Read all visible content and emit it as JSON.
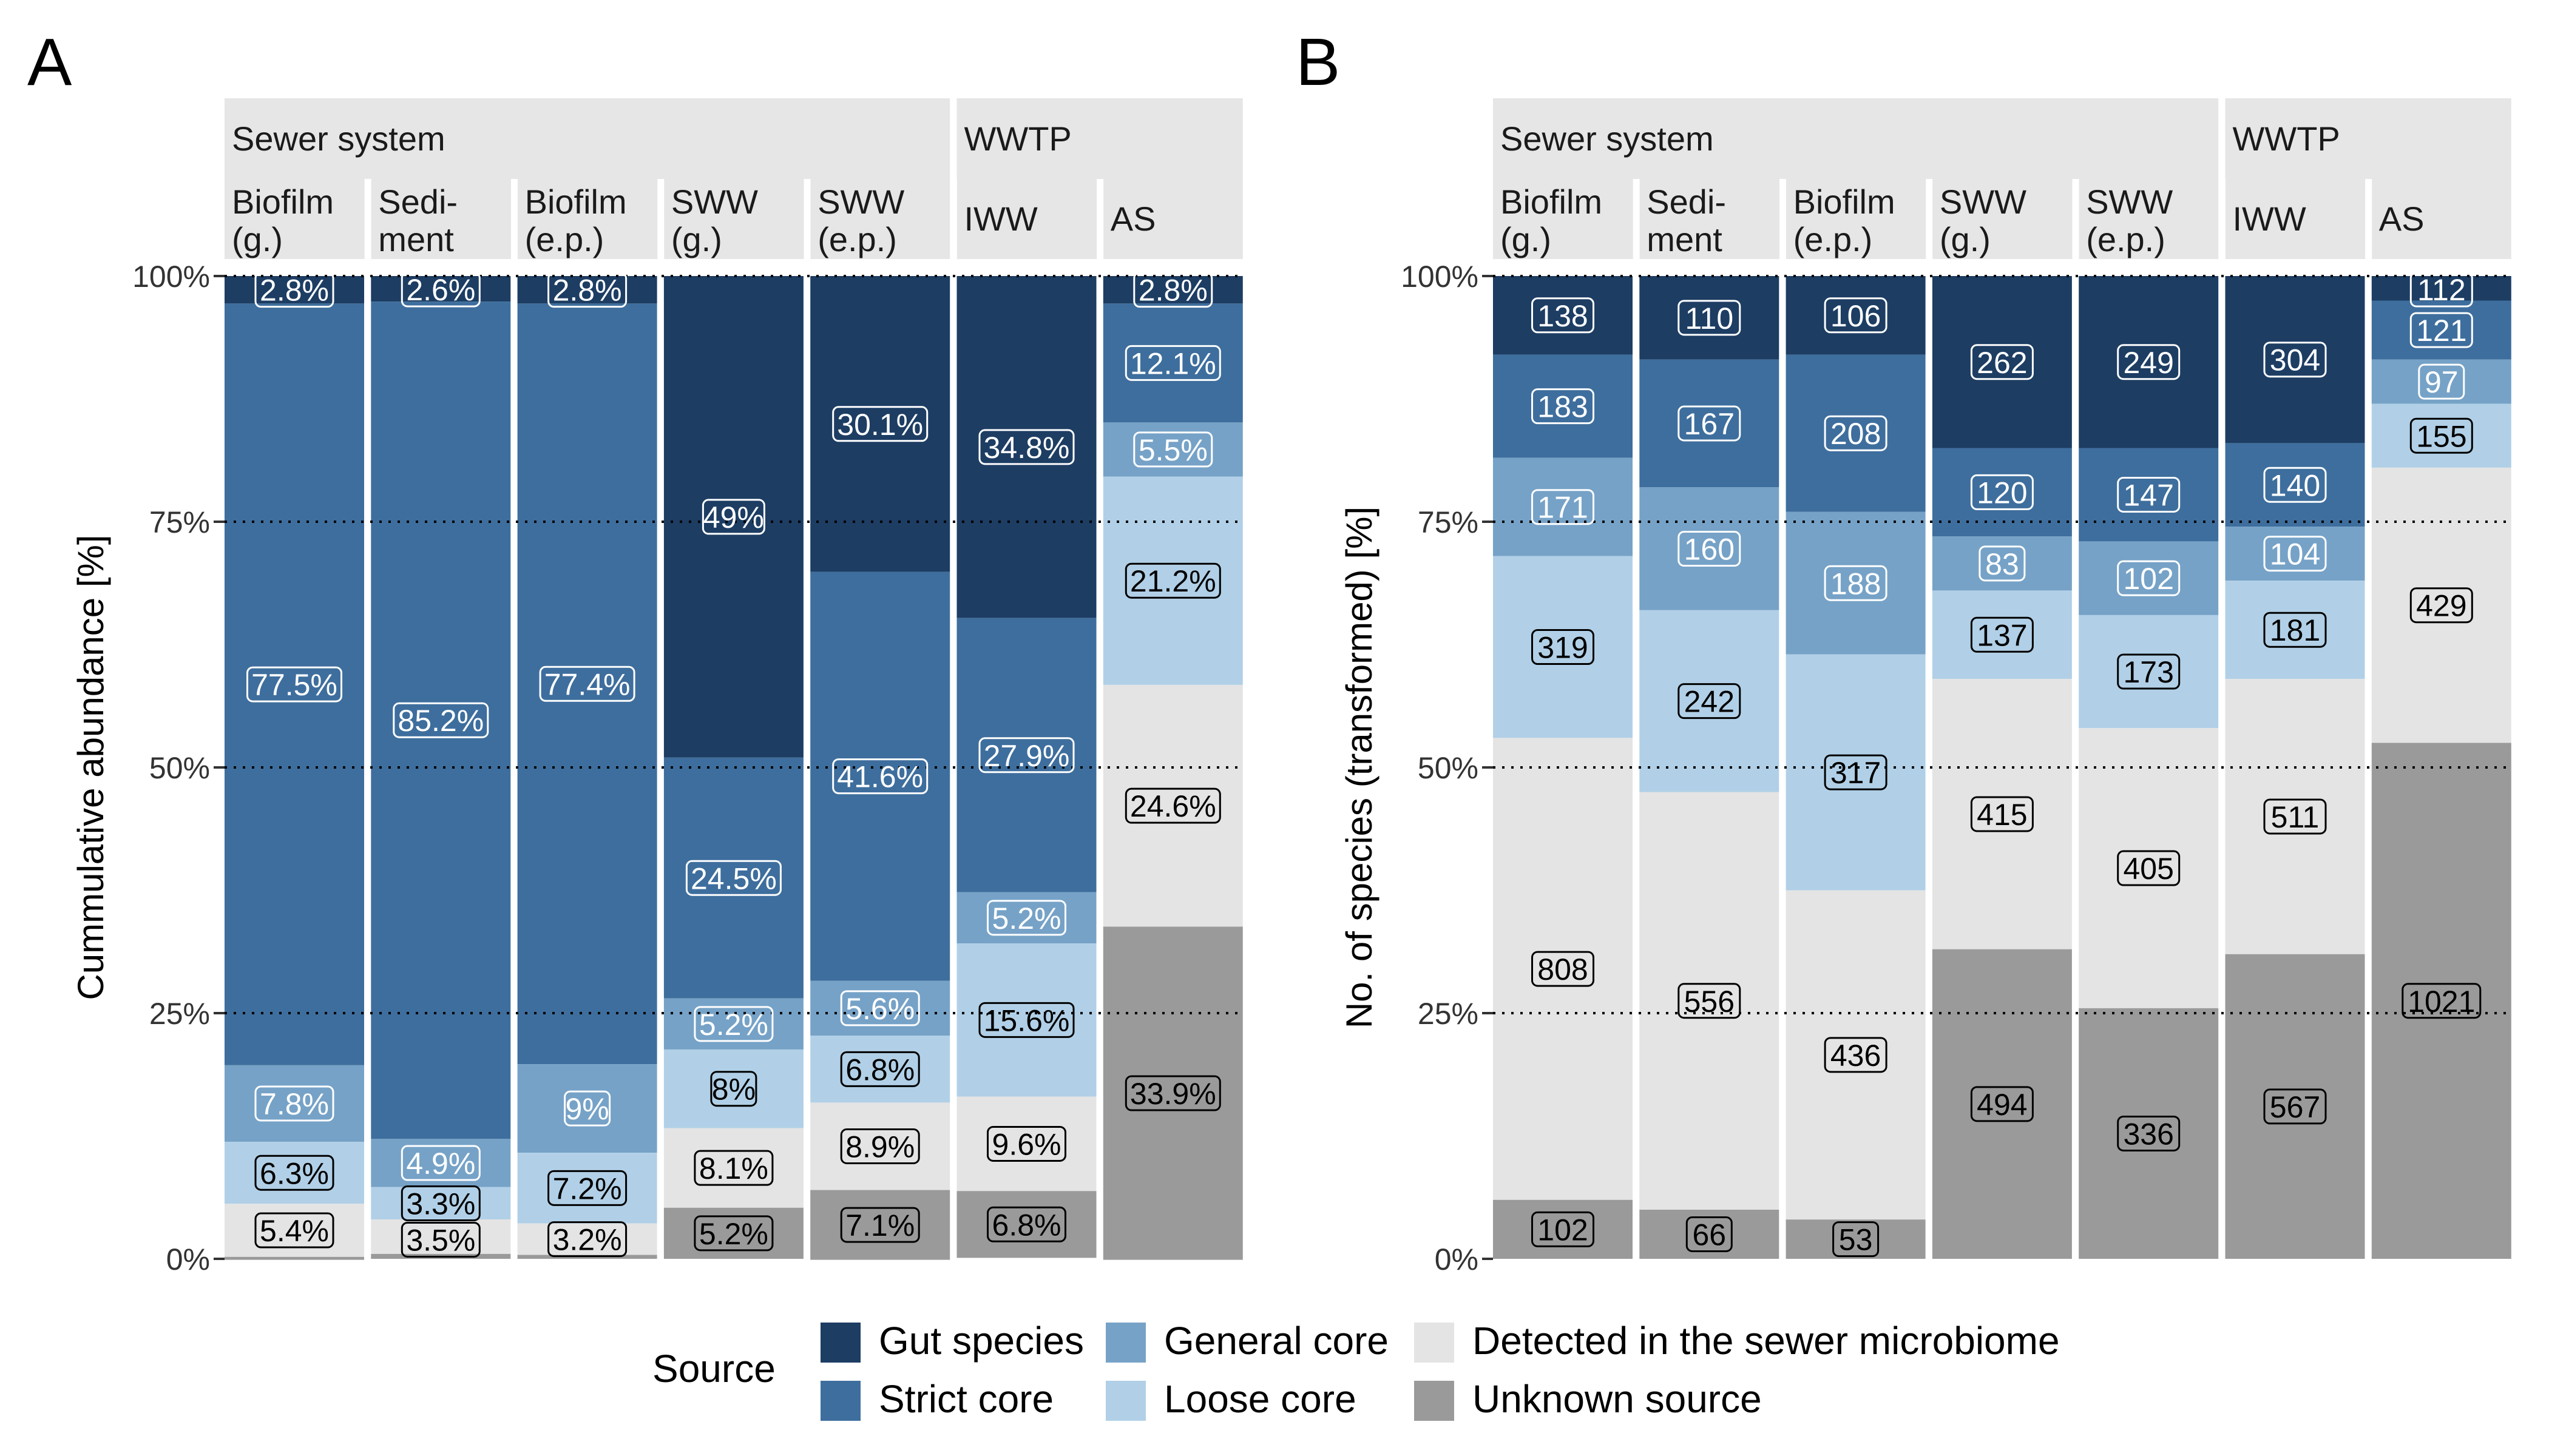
{
  "legend": {
    "title": "Source",
    "items": [
      {
        "label": "Gut species",
        "color": "#1d3d63"
      },
      {
        "label": "Strict core",
        "color": "#3e6e9d"
      },
      {
        "label": "General core",
        "color": "#76a2c7"
      },
      {
        "label": "Loose core",
        "color": "#b1d0e7"
      },
      {
        "label": "Detected in the sewer microbiome",
        "color": "#e4e4e4"
      },
      {
        "label": "Unknown source",
        "color": "#9a9a9a"
      }
    ]
  },
  "chart_data": [
    {
      "panel_letter": "A",
      "type": "bar",
      "stacked": true,
      "ylabel": "Cummulative abundance [%]",
      "ylim": [
        0,
        100
      ],
      "yticks": [
        "0%",
        "25%",
        "50%",
        "75%",
        "100%"
      ],
      "facet_groups": [
        "Sewer system",
        "WWTP"
      ],
      "categories": [
        {
          "label": "Biofilm\n(g.)",
          "group": "Sewer system"
        },
        {
          "label": "Sedi-\nment",
          "group": "Sewer system"
        },
        {
          "label": "Biofilm\n(e.p.)",
          "group": "Sewer system"
        },
        {
          "label": "SWW\n(g.)",
          "group": "Sewer system"
        },
        {
          "label": "SWW\n(e.p.)",
          "group": "Sewer system"
        },
        {
          "label": "IWW",
          "group": "WWTP"
        },
        {
          "label": "AS",
          "group": "WWTP"
        }
      ],
      "series": [
        {
          "name": "Gut species",
          "values": [
            2.8,
            2.6,
            2.8,
            49,
            30.1,
            34.8,
            2.8
          ],
          "labels": [
            "2.8%",
            "2.6%",
            "2.8%",
            "49%",
            "30.1%",
            "34.8%",
            "2.8%"
          ]
        },
        {
          "name": "Strict core",
          "values": [
            77.5,
            85.2,
            77.4,
            24.5,
            41.6,
            27.9,
            12.1
          ],
          "labels": [
            "77.5%",
            "85.2%",
            "77.4%",
            "24.5%",
            "41.6%",
            "27.9%",
            "12.1%"
          ]
        },
        {
          "name": "General core",
          "values": [
            7.8,
            4.9,
            9,
            5.2,
            5.6,
            5.2,
            5.5
          ],
          "labels": [
            "7.8%",
            "4.9%",
            "9%",
            "5.2%",
            "5.6%",
            "5.2%",
            "5.5%"
          ]
        },
        {
          "name": "Loose core",
          "values": [
            6.3,
            3.3,
            7.2,
            8,
            6.8,
            15.6,
            21.2
          ],
          "labels": [
            "6.3%",
            "3.3%",
            "7.2%",
            "8%",
            "6.8%",
            "15.6%",
            "21.2%"
          ]
        },
        {
          "name": "Detected in the sewer microbiome",
          "values": [
            5.4,
            3.5,
            3.2,
            8.1,
            8.9,
            9.6,
            24.6
          ],
          "labels": [
            "5.4%",
            "3.5%",
            "3.2%",
            "8.1%",
            "8.9%",
            "9.6%",
            "24.6%"
          ]
        },
        {
          "name": "Unknown source",
          "values": [
            0.3,
            0.5,
            0.4,
            5.2,
            7.1,
            6.8,
            33.9
          ],
          "labels": [
            "",
            "",
            "",
            "5.2%",
            "7.1%",
            "6.8%",
            "33.9%"
          ]
        }
      ]
    },
    {
      "panel_letter": "B",
      "type": "bar",
      "stacked": true,
      "ylabel": "No. of species (transformed) [%]",
      "ylim": [
        0,
        100
      ],
      "yticks": [
        "0%",
        "25%",
        "50%",
        "75%",
        "100%"
      ],
      "facet_groups": [
        "Sewer system",
        "WWTP"
      ],
      "categories": [
        {
          "label": "Biofilm\n(g.)",
          "group": "Sewer system"
        },
        {
          "label": "Sedi-\nment",
          "group": "Sewer system"
        },
        {
          "label": "Biofilm\n(e.p.)",
          "group": "Sewer system"
        },
        {
          "label": "SWW\n(g.)",
          "group": "Sewer system"
        },
        {
          "label": "SWW\n(e.p.)",
          "group": "Sewer system"
        },
        {
          "label": "IWW",
          "group": "WWTP"
        },
        {
          "label": "AS",
          "group": "WWTP"
        }
      ],
      "series": [
        {
          "name": "Gut species",
          "values": [
            8,
            8.5,
            8,
            17.5,
            17.5,
            17,
            2.5
          ],
          "labels": [
            "138",
            "110",
            "106",
            "262",
            "249",
            "304",
            "112"
          ]
        },
        {
          "name": "Strict core",
          "values": [
            10.5,
            13,
            16,
            9,
            9.5,
            8.5,
            6
          ],
          "labels": [
            "183",
            "167",
            "208",
            "120",
            "147",
            "140",
            "121"
          ]
        },
        {
          "name": "General core",
          "values": [
            10,
            12.5,
            14.5,
            5.5,
            7.5,
            5.5,
            4.5
          ],
          "labels": [
            "171",
            "160",
            "188",
            "83",
            "102",
            "104",
            "97"
          ]
        },
        {
          "name": "Loose core",
          "values": [
            18.5,
            18.5,
            24,
            9,
            11.5,
            10,
            6.5
          ],
          "labels": [
            "319",
            "242",
            "317",
            "137",
            "173",
            "181",
            "155"
          ]
        },
        {
          "name": "Detected in the sewer microbiome",
          "values": [
            47,
            42.5,
            33.5,
            27.5,
            28.5,
            28,
            28
          ],
          "labels": [
            "808",
            "556",
            "436",
            "415",
            "405",
            "511",
            "429"
          ]
        },
        {
          "name": "Unknown source",
          "values": [
            6,
            5,
            4,
            31.5,
            25.5,
            31,
            52.5
          ],
          "labels": [
            "102",
            "66",
            "53",
            "494",
            "336",
            "567",
            "1021"
          ]
        }
      ]
    }
  ]
}
